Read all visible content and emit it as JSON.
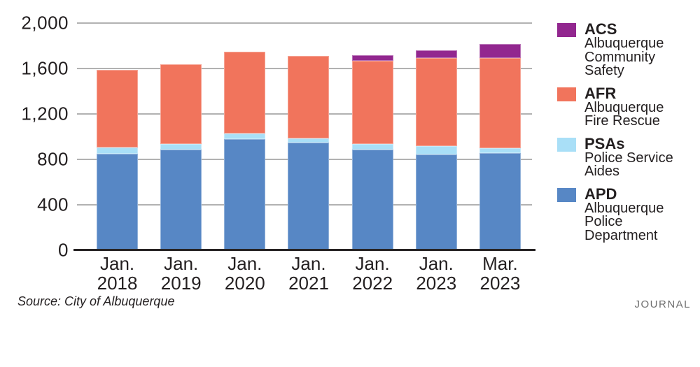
{
  "chart_data": {
    "type": "bar",
    "stacked": true,
    "title": "",
    "xlabel": "",
    "ylabel": "",
    "ylim": [
      0,
      2000
    ],
    "grid": true,
    "legend_position": "right",
    "yticks": [
      {
        "label": "2,000",
        "value": 2000
      },
      {
        "label": "1,600",
        "value": 1600
      },
      {
        "label": "1,200",
        "value": 1200
      },
      {
        "label": "800",
        "value": 800
      },
      {
        "label": "400",
        "value": 400
      },
      {
        "label": "0",
        "value": 0
      }
    ],
    "categories": [
      "Jan. 2018",
      "Jan. 2019",
      "Jan. 2020",
      "Jan. 2021",
      "Jan. 2022",
      "Jan. 2023",
      "Mar. 2023"
    ],
    "series": [
      {
        "abbr": "APD",
        "name": "Albuquerque Police Department",
        "color": "#5787c5",
        "values": [
          850,
          885,
          980,
          950,
          885,
          845,
          855
        ]
      },
      {
        "abbr": "PSAs",
        "name": "Police Service Aides",
        "color": "#a9dff7",
        "values": [
          55,
          50,
          50,
          35,
          50,
          70,
          45
        ]
      },
      {
        "abbr": "AFR",
        "name": "Albuquerque Fire Rescue",
        "color": "#f1745c",
        "values": [
          680,
          705,
          720,
          725,
          730,
          780,
          795
        ]
      },
      {
        "abbr": "ACS",
        "name": "Albuquerque Community Safety",
        "color": "#92278f",
        "values": [
          0,
          0,
          0,
          0,
          55,
          65,
          120
        ]
      }
    ],
    "totals": [
      1585,
      1640,
      1750,
      1710,
      1720,
      1760,
      1815
    ]
  },
  "palette": {
    "gridline": "#b2b2b2",
    "axis_line": "#262324",
    "text": "#231f20",
    "branding_gray": "#6e6e6e"
  },
  "footer": {
    "source": "Source: City of Albuquerque",
    "branding": "JOURNAL"
  }
}
